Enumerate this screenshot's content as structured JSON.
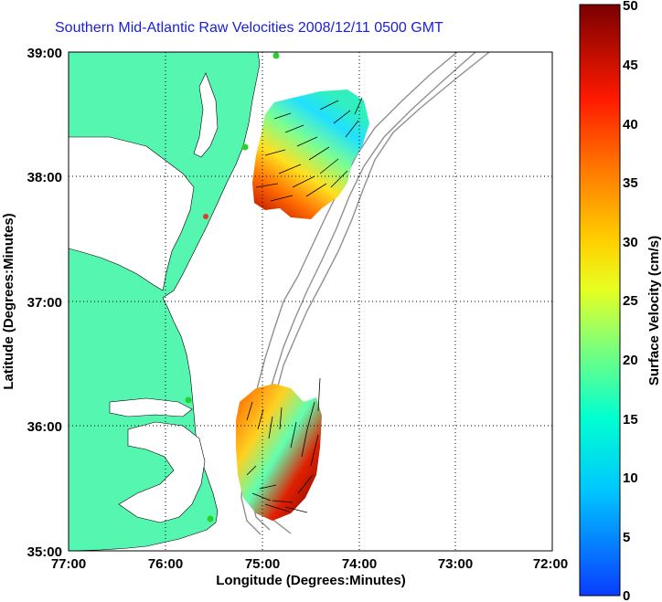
{
  "title": "Southern Mid-Atlantic Raw Velocities 2008/12/11 0500 GMT",
  "x_label": "Longitude (Degrees:Minutes)",
  "y_label": "Latitude (Degrees:Minutes)",
  "x_ticks": [
    "77:00",
    "76:00",
    "75:00",
    "74:00",
    "73:00",
    "72:00"
  ],
  "y_ticks": [
    "39:00",
    "38:00",
    "37:00",
    "36:00",
    "35:00"
  ],
  "colorbar": {
    "label": "Surface Velocity (cm/s)",
    "ticks": [
      "50",
      "45",
      "40",
      "35",
      "30",
      "25",
      "20",
      "15",
      "10",
      "5",
      "0"
    ],
    "range": [
      0,
      50
    ]
  },
  "colors": {
    "land": "#55f7b0",
    "title": "#1b20d8",
    "bathymetry": "#909090",
    "grid": "#000000"
  }
}
